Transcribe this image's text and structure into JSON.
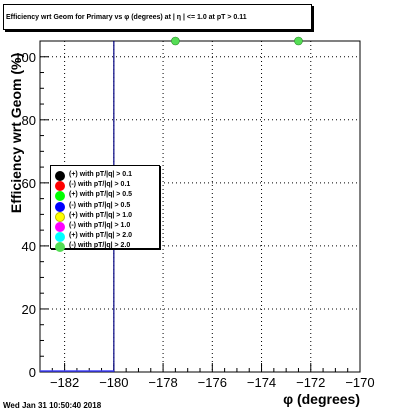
{
  "chart_data": {
    "type": "scatter",
    "title": "Efficiency wrt Geom for Primary vs φ (degrees) at | η | <= 1.0 at pT > 0.11",
    "xlabel": "φ (degrees)",
    "ylabel": "Efficiency wrt Geom (%)",
    "xlim": [
      -183,
      -170
    ],
    "ylim": [
      0,
      105
    ],
    "x_ticks": [
      -182,
      -180,
      -178,
      -176,
      -174,
      -172,
      -170
    ],
    "y_ticks": [
      0,
      20,
      40,
      60,
      80,
      100
    ],
    "grid": true,
    "legend_position": "left-center",
    "series": [
      {
        "name": "(+) with pT/|q| > 0.1",
        "color": "#000000",
        "points": []
      },
      {
        "name": "(-) with pT/|q| > 0.1",
        "color": "#ff0000",
        "points": []
      },
      {
        "name": "(+) with pT/|q| > 0.5",
        "color": "#00ff00",
        "points": []
      },
      {
        "name": "(-) with pT/|q| > 0.5",
        "color": "#0000ff",
        "points": []
      },
      {
        "name": "(+) with pT/|q| > 1.0",
        "color": "#ffff00",
        "points": []
      },
      {
        "name": "(-) with pT/|q| > 1.0",
        "color": "#ff00ff",
        "points": []
      },
      {
        "name": "(+) with pT/|q| > 2.0",
        "color": "#00ffff",
        "points": []
      },
      {
        "name": "(-) with pT/|q| > 2.0",
        "color": "#55dd55",
        "points": [
          [
            -177.5,
            105
          ],
          [
            -172.5,
            105
          ]
        ]
      }
    ],
    "vertical_line_x": -180
  },
  "timestamp": "Wed Jan 31 10:50:40 2018"
}
